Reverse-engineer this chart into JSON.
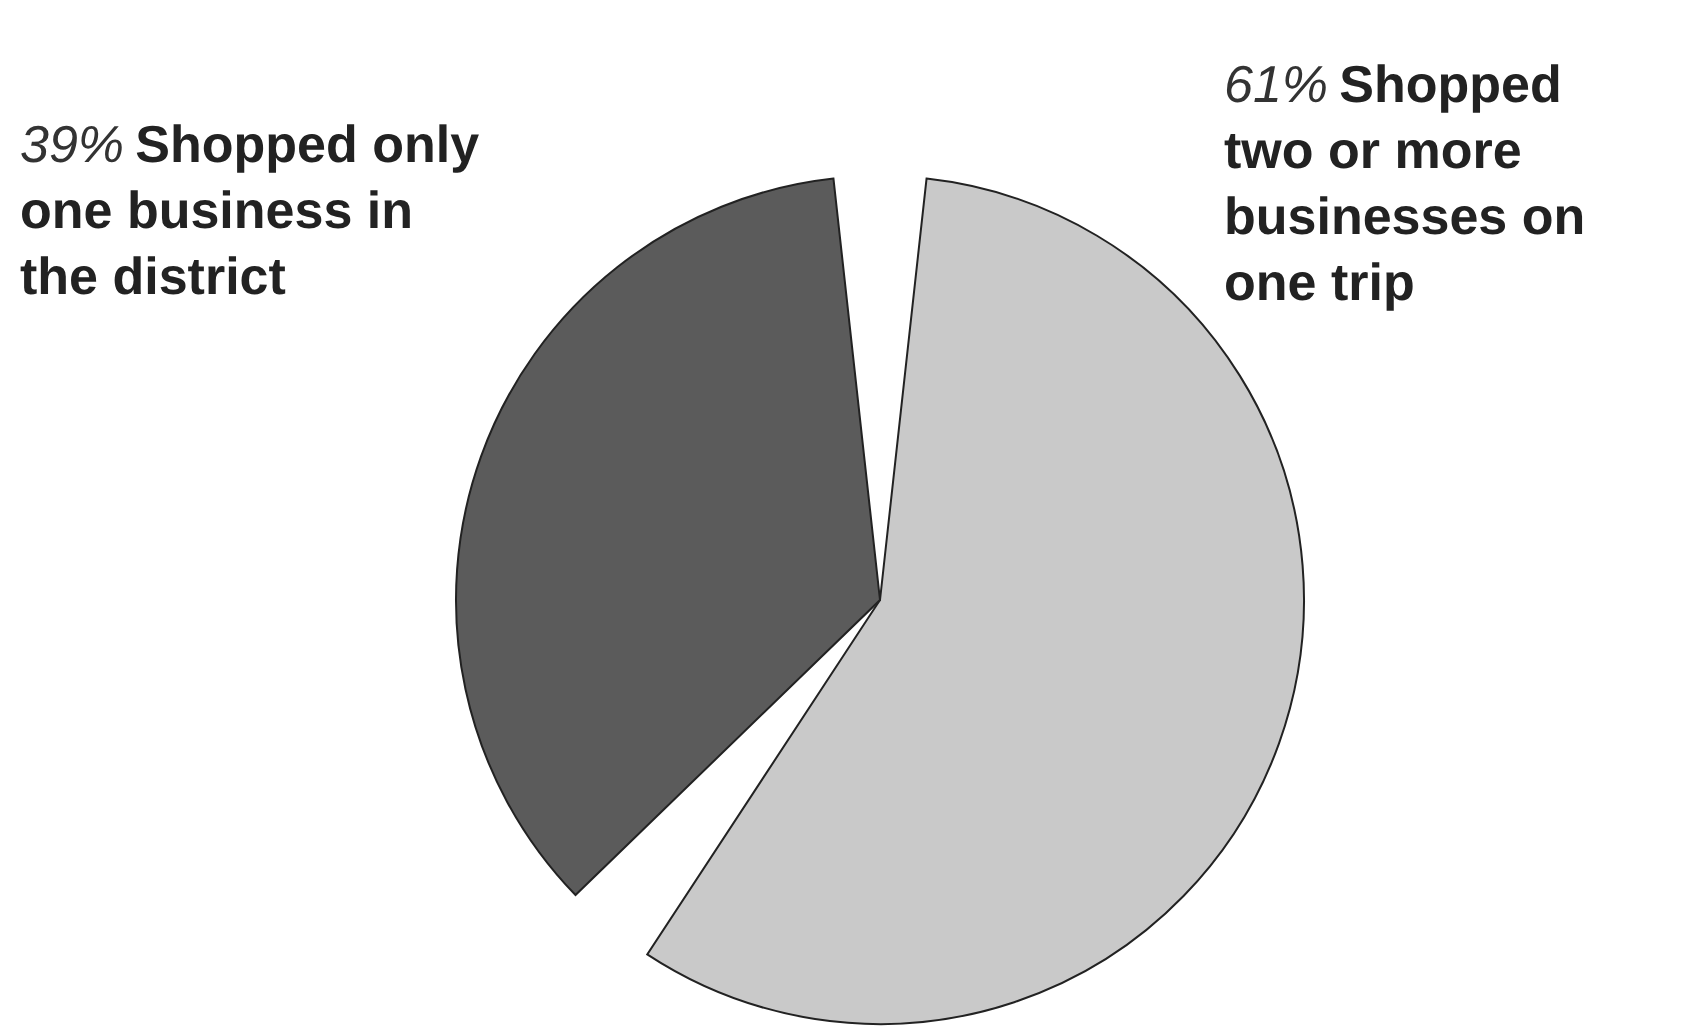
{
  "chart_data": {
    "type": "pie",
    "categories": [
      "Shopped two or more businesses on one trip",
      "Shopped only one business in the district"
    ],
    "values": [
      61,
      39
    ],
    "value_labels": [
      "61%",
      "39%"
    ],
    "colors": [
      "#c9c9c9",
      "#5b5b5b"
    ]
  }
}
